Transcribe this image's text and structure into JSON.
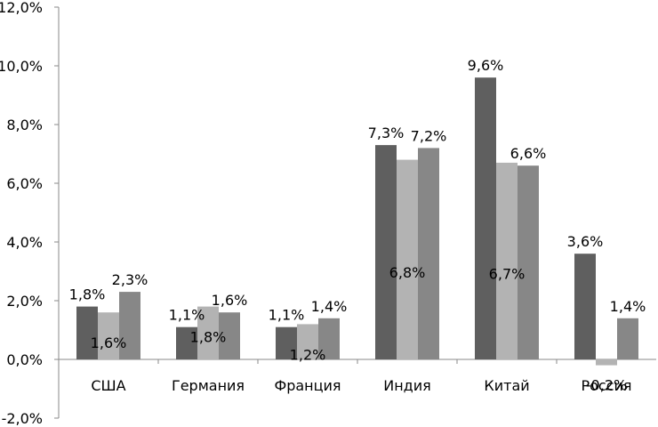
{
  "chart_data": {
    "type": "bar",
    "title": "",
    "xlabel": "",
    "ylabel": "",
    "categories": [
      "США",
      "Германия",
      "Франция",
      "Индия",
      "Китай",
      "Россия"
    ],
    "ylim": [
      -2.0,
      12.0
    ],
    "yticks": [
      -2.0,
      0.0,
      2.0,
      4.0,
      6.0,
      8.0,
      10.0,
      12.0
    ],
    "ytick_labels": [
      "-2,0%",
      "0,0%",
      "2,0%",
      "4,0%",
      "6,0%",
      "8,0%",
      "10,0%",
      "12,0%"
    ],
    "grid": false,
    "legend": "none",
    "series": [
      {
        "color": "#5f5f5f",
        "values": [
          1.8,
          1.1,
          1.1,
          7.3,
          9.6,
          3.6
        ],
        "labels": [
          "1,8%",
          "1,1%",
          "1,1%",
          "7,3%",
          "9,6%",
          "3,6%"
        ],
        "label_position": "above"
      },
      {
        "color": "#b3b3b3",
        "values": [
          1.6,
          1.8,
          1.2,
          6.8,
          6.7,
          -0.2
        ],
        "labels": [
          "1,6%",
          "1,8%",
          "1,2%",
          "6,8%",
          "6,7%",
          "-0,2%"
        ],
        "label_position": "inside"
      },
      {
        "color": "#878787",
        "values": [
          2.3,
          1.6,
          1.4,
          7.2,
          6.6,
          1.4
        ],
        "labels": [
          "2,3%",
          "1,6%",
          "1,4%",
          "7,2%",
          "6,6%",
          "1,4%"
        ],
        "label_position": "above"
      }
    ]
  }
}
